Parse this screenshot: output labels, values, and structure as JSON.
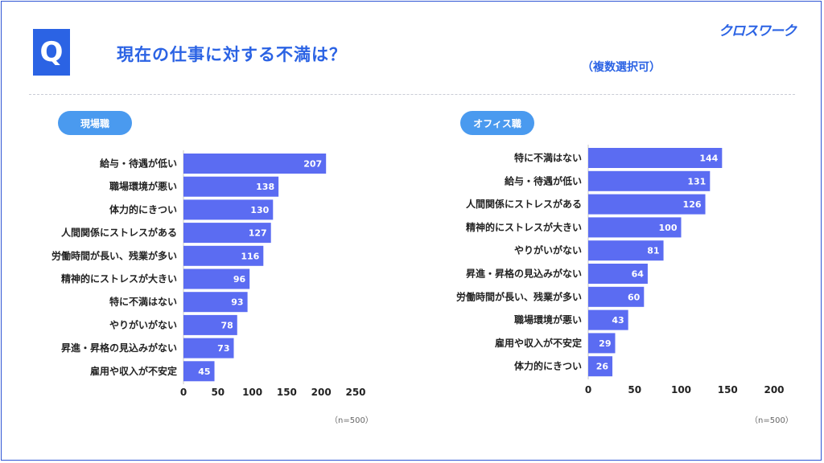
{
  "header": {
    "q_mark": "Q",
    "title": "現在の仕事に対する不満は？",
    "multi_note": "（複数選択可）",
    "logo": "クロスワーク"
  },
  "colors": {
    "bar": "#5b6cf2",
    "accent": "#2b63e4",
    "pill": "#4a9aef"
  },
  "chart_data": [
    {
      "type": "bar",
      "orientation": "horizontal",
      "title": "現場職",
      "categories": [
        "給与・待遇が低い",
        "職場環境が悪い",
        "体力的にきつい",
        "人間関係にストレスがある",
        "労働時間が長い、残業が多い",
        "精神的にストレスが大きい",
        "特に不満はない",
        "やりがいがない",
        "昇進・昇格の見込みがない",
        "雇用や収入が不安定"
      ],
      "values": [
        207,
        138,
        130,
        127,
        116,
        96,
        93,
        78,
        73,
        45
      ],
      "xlim": [
        0,
        250
      ],
      "ticks": [
        0,
        50,
        100,
        150,
        200,
        250
      ],
      "note": "（n=500）"
    },
    {
      "type": "bar",
      "orientation": "horizontal",
      "title": "オフィス職",
      "categories": [
        "特に不満はない",
        "給与・待遇が低い",
        "人間関係にストレスがある",
        "精神的にストレスが大きい",
        "やりがいがない",
        "昇進・昇格の見込みがない",
        "労働時間が長い、残業が多い",
        "職場環境が悪い",
        "雇用や収入が不安定",
        "体力的にきつい"
      ],
      "values": [
        144,
        131,
        126,
        100,
        81,
        64,
        60,
        43,
        29,
        26
      ],
      "xlim": [
        0,
        200
      ],
      "ticks": [
        0,
        50,
        100,
        150,
        200
      ],
      "note": "（n=500）"
    }
  ]
}
